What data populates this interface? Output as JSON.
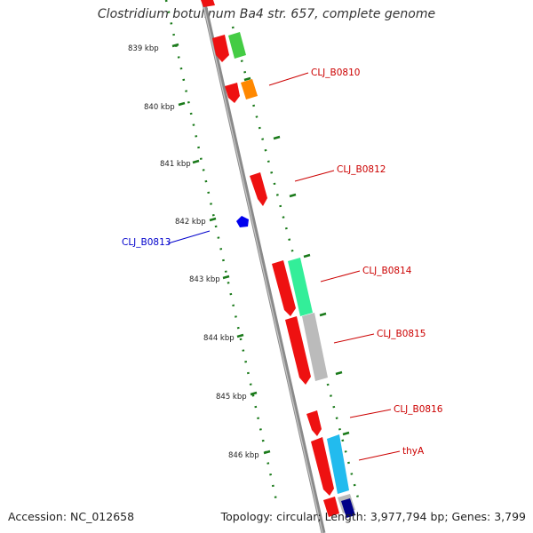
{
  "title": "Clostridium botulinum Ba4 str. 657, complete genome",
  "footer": {
    "accession": "Accession: NC_012658",
    "summary": "Topology: circular; Length: 3,977,794 bp; Genes: 3,799"
  },
  "scale": {
    "ticks": [
      "839 kbp",
      "840 kbp",
      "841 kbp",
      "842 kbp",
      "843 kbp",
      "844 kbp",
      "845 kbp",
      "846 kbp"
    ]
  },
  "gene_labels": [
    {
      "name": "CLJ_B0810",
      "color": "#cc0000"
    },
    {
      "name": "CLJ_B0812",
      "color": "#cc0000"
    },
    {
      "name": "CLJ_B0813",
      "color": "#0000cc"
    },
    {
      "name": "CLJ_B0814",
      "color": "#cc0000"
    },
    {
      "name": "CLJ_B0815",
      "color": "#cc0000"
    },
    {
      "name": "CLJ_B0816",
      "color": "#cc0000"
    },
    {
      "name": "thyA",
      "color": "#cc0000"
    }
  ],
  "colors": {
    "backbone": "#8a8a8a",
    "scale_dots": "#1a7a1a",
    "cds_red": "#ee1111",
    "green": "#44cc44",
    "orange": "#ff8800",
    "teal": "#33ee99",
    "grey": "#bbbbbb",
    "sky": "#22bbee",
    "navy": "#000088",
    "blue_feature": "#0000ee"
  }
}
